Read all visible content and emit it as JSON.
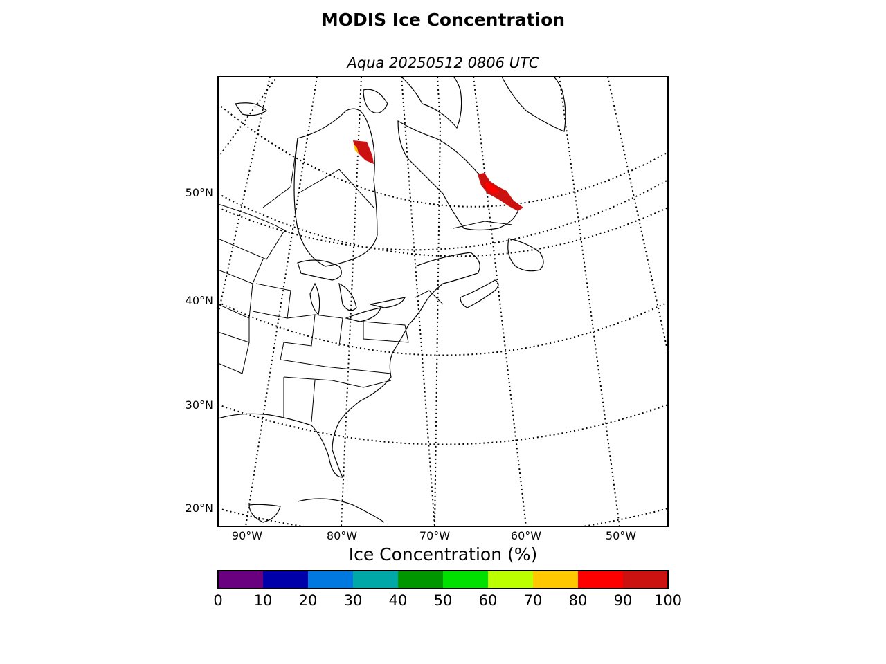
{
  "title": "MODIS Ice Concentration",
  "subtitle": "Aqua 20250512 0806 UTC",
  "lat_labels": [
    "50°N",
    "40°N",
    "30°N",
    "20°N"
  ],
  "lon_labels": [
    "90°W",
    "80°W",
    "70°W",
    "60°W",
    "50°W"
  ],
  "colorbar": {
    "label": "Ice Concentration (%)",
    "ticks": [
      "0",
      "10",
      "20",
      "30",
      "40",
      "50",
      "60",
      "70",
      "80",
      "90",
      "100"
    ],
    "colors": [
      "#6a0080",
      "#0000aa",
      "#0078e0",
      "#00a8a8",
      "#009600",
      "#00e000",
      "#bbff00",
      "#ffc800",
      "#ff0000",
      "#cc1111"
    ]
  },
  "ice_regions": [
    {
      "name": "Hudson Bay east coast",
      "concentration": "90-100"
    },
    {
      "name": "Labrador coast",
      "concentration": "90-100"
    }
  ]
}
